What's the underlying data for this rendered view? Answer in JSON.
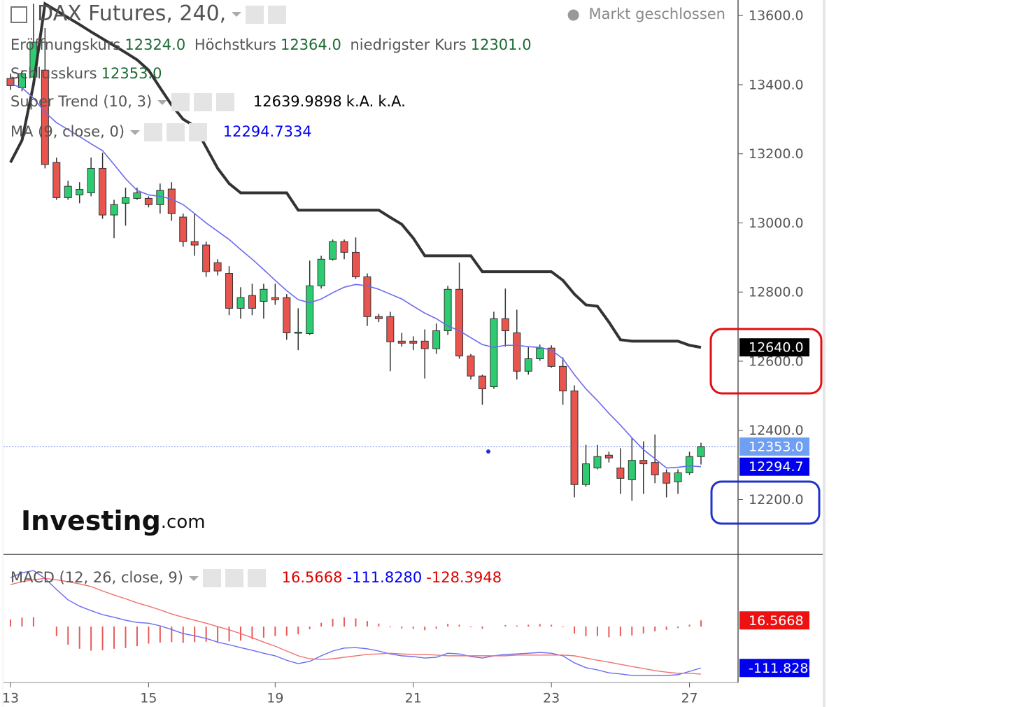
{
  "header": {
    "title": "DAX Futures, 240,",
    "status": "Markt geschlossen",
    "ohlc": [
      {
        "name": "Eröffnungskurs",
        "value": "12324.0"
      },
      {
        "name": "Höchstkurs",
        "value": "12364.0"
      },
      {
        "name": "niedrigster Kurs",
        "value": "12301.0"
      },
      {
        "name": "Schlusskurs",
        "value": "12353.0"
      }
    ]
  },
  "indicators": [
    {
      "name": "Super Trend (10, 3)",
      "values": [
        "12639.9898",
        "k.A.",
        "k.A."
      ]
    },
    {
      "name": "MA (9, close, 0)",
      "values": [
        "12294.7334"
      ]
    }
  ],
  "logo": {
    "brand": "Investing",
    "suffix": ".com"
  },
  "chart_data": [
    {
      "type": "candlestick",
      "categories": [
        "13",
        null,
        null,
        null,
        null,
        null,
        null,
        null,
        null,
        null,
        null,
        null,
        "15",
        null,
        null,
        null,
        null,
        null,
        null,
        null,
        null,
        null,
        null,
        "19",
        null,
        null,
        null,
        null,
        null,
        null,
        null,
        null,
        null,
        null,
        null,
        "21",
        null,
        null,
        null,
        null,
        null,
        null,
        null,
        null,
        null,
        null,
        null,
        "23",
        null,
        null,
        null,
        null,
        null,
        null,
        null,
        null,
        null,
        null,
        null,
        "27",
        null
      ],
      "open": [
        13418,
        13391,
        13422,
        13442,
        13175,
        13073,
        13081,
        13087,
        13158,
        13023,
        13057,
        13071,
        13071,
        13053,
        13098,
        13017,
        12946,
        12936,
        12885,
        12854,
        12753,
        12790,
        12773,
        12784,
        12784,
        12682,
        12680,
        12818,
        12895,
        12946,
        12915,
        12844,
        12729,
        12729,
        12658,
        12658,
        12658,
        12636,
        12688,
        12808,
        12615,
        12557,
        12526,
        12723,
        12682,
        12571,
        12607,
        12638,
        12585,
        12514,
        12243,
        12291,
        12328,
        12291,
        12257,
        12313,
        12307,
        12277,
        12251,
        12277,
        12324
      ],
      "high": [
        13432,
        13442,
        13634,
        13564,
        13189,
        13122,
        13118,
        13189,
        13203,
        13067,
        13102,
        13102,
        13077,
        13114,
        13118,
        13027,
        13027,
        12946,
        12895,
        12875,
        12814,
        12824,
        12824,
        12824,
        12794,
        12753,
        12891,
        12905,
        12952,
        12952,
        12958,
        12854,
        12737,
        12743,
        12682,
        12672,
        12692,
        12709,
        12818,
        12885,
        12621,
        12561,
        12743,
        12810,
        12749,
        12642,
        12648,
        12646,
        12611,
        12530,
        12358,
        12358,
        12338,
        12348,
        12378,
        12368,
        12388,
        12287,
        12287,
        12338,
        12364
      ],
      "low": [
        13385,
        13381,
        13412,
        13158,
        13067,
        13067,
        13057,
        13077,
        13012,
        12956,
        12992,
        13067,
        13045,
        13027,
        13006,
        12931,
        12905,
        12844,
        12848,
        12733,
        12723,
        12733,
        12723,
        12763,
        12662,
        12632,
        12676,
        12810,
        12891,
        12895,
        12838,
        12702,
        12713,
        12571,
        12642,
        12632,
        12550,
        12621,
        12676,
        12607,
        12547,
        12474,
        12520,
        12642,
        12547,
        12561,
        12601,
        12581,
        12474,
        12206,
        12237,
        12287,
        12307,
        12216,
        12196,
        12216,
        12247,
        12206,
        12216,
        12271,
        12301
      ],
      "close": [
        13397,
        13432,
        13523,
        13169,
        13073,
        13106,
        13097,
        13158,
        13023,
        13053,
        13073,
        13087,
        13053,
        13094,
        13027,
        12946,
        12936,
        12859,
        12861,
        12753,
        12784,
        12753,
        12808,
        12778,
        12682,
        12684,
        12818,
        12895,
        12946,
        12915,
        12844,
        12729,
        12723,
        12656,
        12652,
        12652,
        12636,
        12688,
        12808,
        12615,
        12557,
        12520,
        12723,
        12688,
        12571,
        12607,
        12638,
        12585,
        12514,
        12243,
        12303,
        12324,
        12320,
        12261,
        12313,
        12303,
        12271,
        12247,
        12277,
        12324,
        12353
      ],
      "up_color": "#2ecc71",
      "down_color": "#e8554e",
      "lines": [
        {
          "color": "#333333",
          "values": [
            13175,
            13239,
            13401,
            13634,
            13614,
            13594,
            13574,
            13553,
            13533,
            13513,
            13493,
            13472,
            13442,
            13391,
            13341,
            13300,
            13280,
            13219,
            13158,
            13114,
            13087,
            13087,
            13087,
            13087,
            13087,
            13037,
            13037,
            13037,
            13037,
            13037,
            13037,
            13037,
            13037,
            13016,
            12996,
            12956,
            12905,
            12905,
            12905,
            12905,
            12905,
            12859,
            12859,
            12859,
            12859,
            12859,
            12859,
            12859,
            12834,
            12794,
            12763,
            12759,
            12713,
            12662,
            12658,
            12658,
            12658,
            12658,
            12658,
            12646,
            12639.9898
          ]
        },
        {
          "color": "#6a6af0",
          "values": [
            13402,
            13391,
            13361,
            13320,
            13290,
            13270,
            13250,
            13229,
            13209,
            13169,
            13128,
            13094,
            13081,
            13077,
            13069,
            13053,
            13027,
            13000,
            12976,
            12952,
            12923,
            12895,
            12865,
            12834,
            12804,
            12778,
            12769,
            12780,
            12798,
            12814,
            12822,
            12818,
            12808,
            12794,
            12780,
            12759,
            12739,
            12723,
            12702,
            12688,
            12668,
            12648,
            12640,
            12646,
            12646,
            12642,
            12640,
            12632,
            12607,
            12561,
            12520,
            12486,
            12449,
            12415,
            12378,
            12344,
            12318,
            12291,
            12293,
            12297,
            12294.7334
          ]
        }
      ],
      "ylim": [
        12045,
        13645
      ],
      "yticks": [
        {
          "value": 12200,
          "label": "12200.0"
        },
        {
          "value": 12400,
          "label": "12400.0"
        },
        {
          "value": 12600,
          "label": "12600.0"
        },
        {
          "value": 12800,
          "label": "12800.0"
        },
        {
          "value": 13000,
          "label": "13000.0"
        },
        {
          "value": 13200,
          "label": "13200.0"
        },
        {
          "value": 13400,
          "label": "13400.0"
        },
        {
          "value": 13600,
          "label": "13600.0"
        }
      ],
      "badges": [
        {
          "value": 12640,
          "label": "12640.0",
          "color": "#000000"
        },
        {
          "value": 12353,
          "label": "12353.0",
          "color": "#6f9ff2"
        },
        {
          "value": 12294.7,
          "label": "12294.7",
          "color": "#0000ee"
        }
      ]
    },
    {
      "type": "macd",
      "title": "MACD (12, 26, close, 9)",
      "legend_values": [
        "16.5668",
        "-111.8280",
        "-128.3948"
      ],
      "histogram": {
        "color": "#e85a5a",
        "values": [
          19,
          24,
          25,
          0,
          -26,
          -49,
          -60,
          -65,
          -64,
          -60,
          -58,
          -53,
          -46,
          -43,
          -42,
          -44,
          -42,
          -41,
          -42,
          -40,
          -38,
          -34,
          -30,
          -26,
          -25,
          -21,
          -7,
          10,
          21,
          25,
          22,
          15,
          8,
          -2,
          -5,
          -6,
          -10,
          -6,
          7,
          5,
          -2,
          -6,
          0,
          4,
          3,
          5,
          7,
          5,
          -2,
          -19,
          -26,
          -26,
          -29,
          -26,
          -24,
          -19,
          -13,
          -9,
          -4,
          5,
          16.5668
        ]
      },
      "series": [
        {
          "color": "#6a6af0",
          "values": [
            132,
            145,
            151,
            130,
            100,
            72,
            55,
            43,
            32,
            25,
            17,
            11,
            9,
            2,
            -8,
            -19,
            -25,
            -32,
            -42,
            -49,
            -57,
            -64,
            -72,
            -79,
            -91,
            -100,
            -94,
            -79,
            -66,
            -58,
            -57,
            -60,
            -66,
            -74,
            -79,
            -81,
            -85,
            -83,
            -72,
            -74,
            -81,
            -85,
            -79,
            -75,
            -74,
            -72,
            -70,
            -72,
            -79,
            -98,
            -111,
            -117,
            -125,
            -128,
            -132,
            -132,
            -132,
            -132,
            -130,
            -121,
            -111.828
          ]
        },
        {
          "color": "#f07070",
          "values": [
            113,
            121,
            126,
            130,
            126,
            121,
            115,
            108,
            96,
            85,
            75,
            64,
            55,
            45,
            34,
            25,
            17,
            9,
            0,
            -9,
            -19,
            -30,
            -42,
            -53,
            -66,
            -79,
            -87,
            -89,
            -87,
            -83,
            -79,
            -75,
            -74,
            -72,
            -74,
            -75,
            -75,
            -77,
            -79,
            -79,
            -79,
            -79,
            -79,
            -79,
            -77,
            -77,
            -77,
            -77,
            -77,
            -79,
            -85,
            -91,
            -96,
            -102,
            -108,
            -113,
            -119,
            -123,
            -126,
            -126,
            -128.3948
          ]
        }
      ],
      "ylim": [
        -151,
        189
      ],
      "badges": [
        {
          "value": 16.5668,
          "label": "16.5668",
          "color": "#ee1111"
        },
        {
          "value": -111.828,
          "label": "-111.8280",
          "color": "#0000ee"
        }
      ]
    }
  ]
}
